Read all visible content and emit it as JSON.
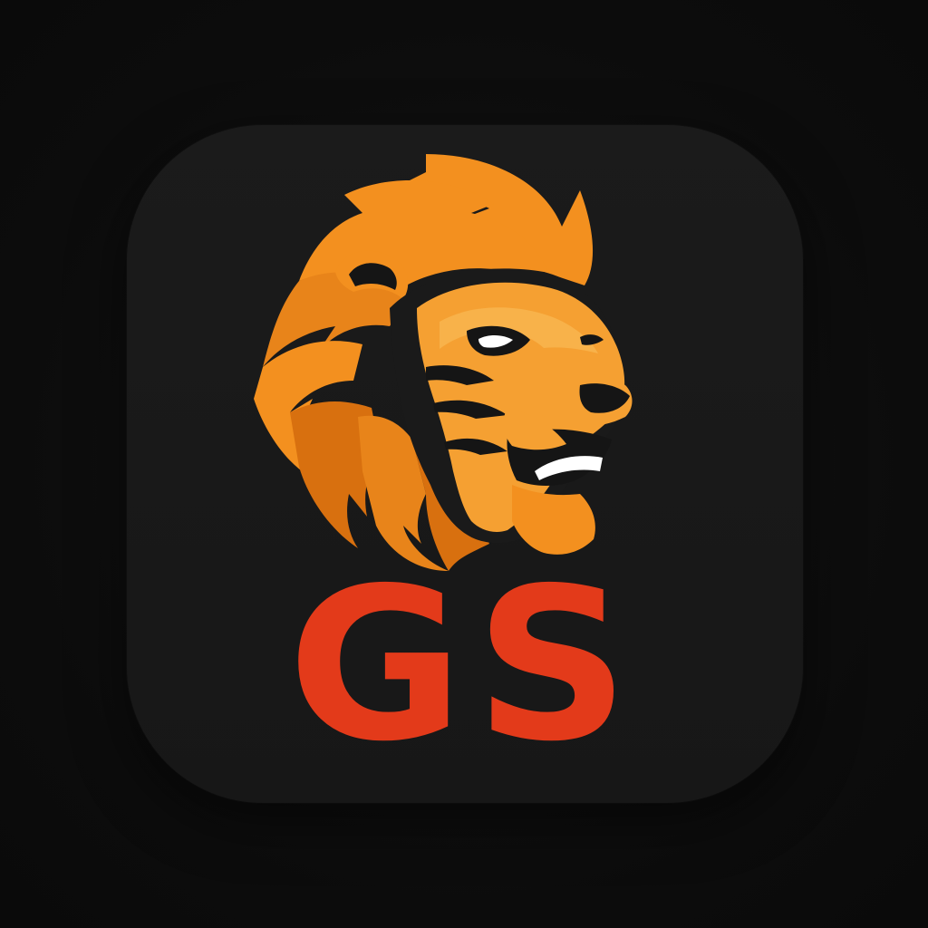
{
  "logo": {
    "monogram": "GS",
    "mascot_icon": "lion-head-icon",
    "colors": {
      "background": "#0d0d0d",
      "tile": "#191919",
      "mane_light": "#f3901f",
      "mane_dark": "#d8700f",
      "face": "#f5a032",
      "monogram": "#e33a1a",
      "eye": "#ffffff"
    }
  }
}
